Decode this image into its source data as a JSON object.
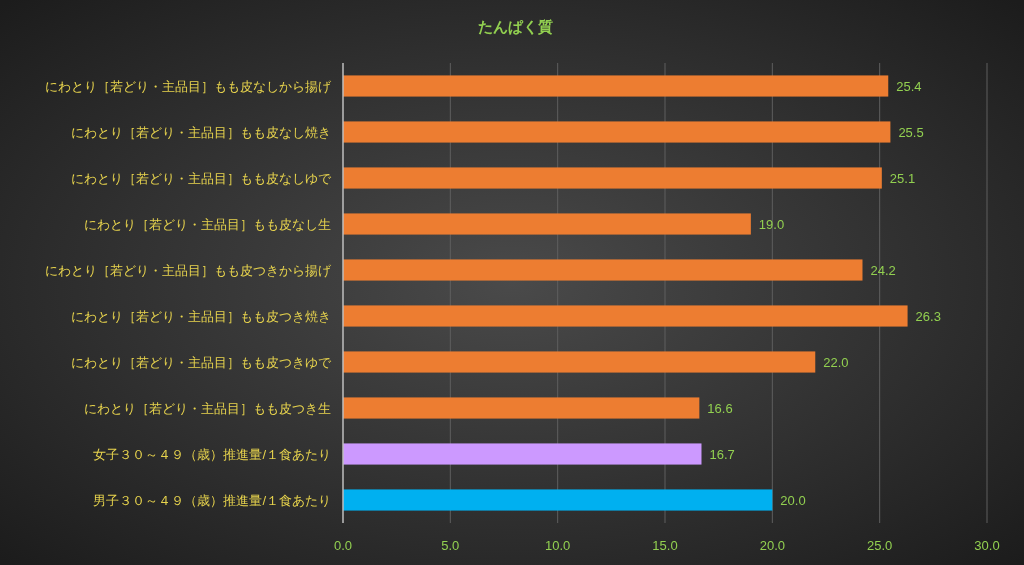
{
  "chart_data": {
    "type": "bar",
    "orientation": "horizontal",
    "title": "たんぱく質",
    "categories": [
      "にわとり［若どり・主品目］もも皮なしから揚げ",
      "にわとり［若どり・主品目］もも皮なし焼き",
      "にわとり［若どり・主品目］もも皮なしゆで",
      "にわとり［若どり・主品目］もも皮なし生",
      "にわとり［若どり・主品目］もも皮つきから揚げ",
      "にわとり［若どり・主品目］もも皮つき焼き",
      "にわとり［若どり・主品目］もも皮つきゆで",
      "にわとり［若どり・主品目］もも皮つき生",
      "女子３０～４９（歳）推進量/１食あたり",
      "男子３０～４９（歳）推進量/１食あたり"
    ],
    "values": [
      25.4,
      25.5,
      25.1,
      19.0,
      24.2,
      26.3,
      22.0,
      16.6,
      16.7,
      20.0
    ],
    "value_labels": [
      "25.4",
      "25.5",
      "25.1",
      "19.0",
      "24.2",
      "26.3",
      "22.0",
      "16.6",
      "16.7",
      "20.0"
    ],
    "colors": [
      "#ed7d31",
      "#ed7d31",
      "#ed7d31",
      "#ed7d31",
      "#ed7d31",
      "#ed7d31",
      "#ed7d31",
      "#ed7d31",
      "#cc99ff",
      "#00b0f0"
    ],
    "xlim": [
      0,
      30
    ],
    "xticks": [
      {
        "value": 0,
        "label": "0.0"
      },
      {
        "value": 5,
        "label": "5.0"
      },
      {
        "value": 10,
        "label": "10.0"
      },
      {
        "value": 15,
        "label": "15.0"
      },
      {
        "value": 20,
        "label": "20.0"
      },
      {
        "value": 25,
        "label": "25.0"
      },
      {
        "value": 30,
        "label": "30.0"
      }
    ],
    "grid": "x"
  }
}
